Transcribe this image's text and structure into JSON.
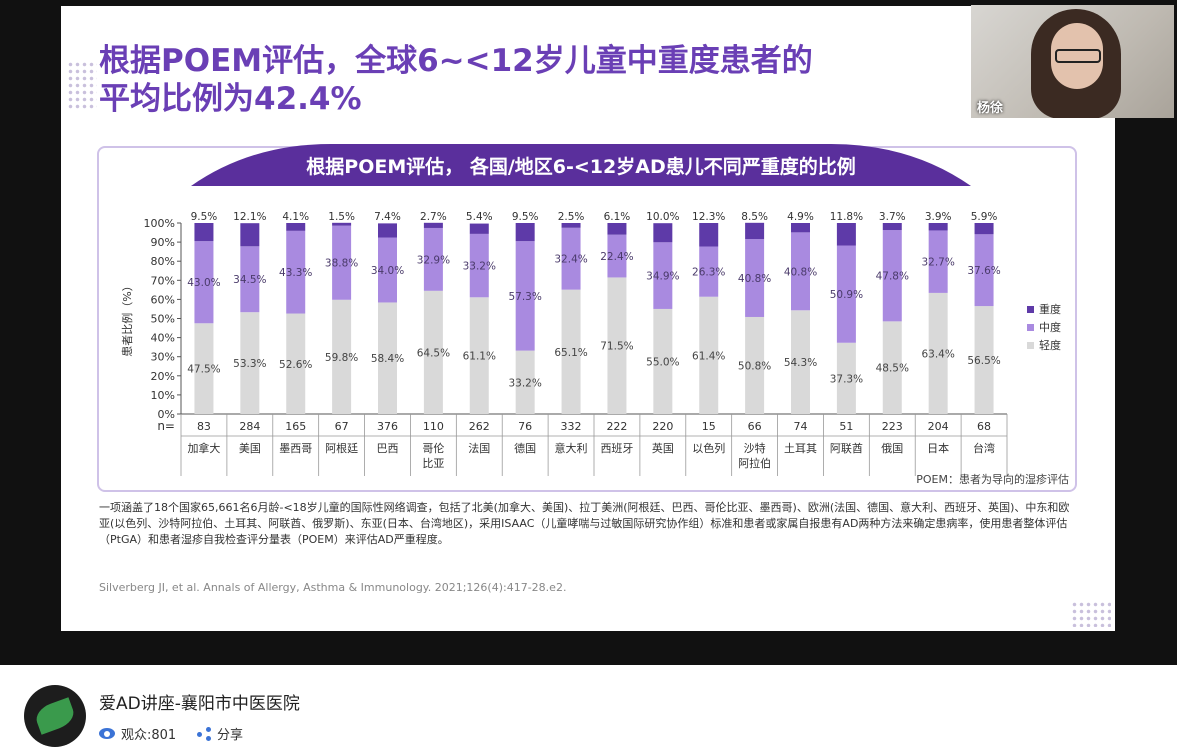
{
  "slide": {
    "title_line1": "根据POEM评估，全球6~<12岁儿童中重度患者的",
    "title_line2": "平均比例为42.4%",
    "banner": "根据POEM评估， 各国/地区6-<12岁AD患儿不同严重度的比例",
    "footnote": "POEM：患者为导向的湿疹评估",
    "note": "一项涵盖了18个国家65,661名6月龄-<18岁儿童的国际性网络调查，包括了北美(加拿大、美国)、拉丁美洲(阿根廷、巴西、哥伦比亚、墨西哥)、欧洲(法国、德国、意大利、西班牙、英国)、中东和欧亚(以色列、沙特阿拉伯、土耳其、阿联酋、俄罗斯)、东亚(日本、台湾地区)，采用ISAAC（儿童哮喘与过敏国际研究协作组）标准和患者或家属自报患有AD两种方法来确定患病率，使用患者整体评估（PtGA）和患者湿疹自我检查评分量表（POEM）来评估AD严重程度。",
    "reference": "Silverberg JI, et al. Annals of Allergy, Asthma & Immunology. 2021;126(4):417-28.e2."
  },
  "chart_data": {
    "type": "bar",
    "stacked": true,
    "ylabel": "患者比例（%）",
    "ylim": [
      0,
      100
    ],
    "yticks": [
      "0%",
      "10%",
      "20%",
      "30%",
      "40%",
      "50%",
      "60%",
      "70%",
      "80%",
      "90%",
      "100%"
    ],
    "n_label": "n=",
    "categories": [
      [
        "加拿大"
      ],
      [
        "美国"
      ],
      [
        "墨西哥"
      ],
      [
        "阿根廷"
      ],
      [
        "巴西"
      ],
      [
        "哥伦",
        "比亚"
      ],
      [
        "法国"
      ],
      [
        "德国"
      ],
      [
        "意大利"
      ],
      [
        "西班牙"
      ],
      [
        "英国"
      ],
      [
        "以色列"
      ],
      [
        "沙特",
        "阿拉伯"
      ],
      [
        "土耳其"
      ],
      [
        "阿联酋"
      ],
      [
        "俄国"
      ],
      [
        "日本"
      ],
      [
        "台湾"
      ]
    ],
    "n": [
      "83",
      "284",
      "165",
      "67",
      "376",
      "110",
      "262",
      "76",
      "332",
      "222",
      "220",
      "15",
      "66",
      "74",
      "51",
      "223",
      "204",
      "68"
    ],
    "series": [
      {
        "name": "轻度",
        "color": "#d9d9d9",
        "values": [
          47.5,
          53.3,
          52.6,
          59.8,
          58.4,
          64.5,
          61.1,
          33.2,
          65.1,
          71.5,
          55.0,
          61.4,
          50.8,
          54.3,
          37.3,
          48.5,
          63.4,
          56.5
        ],
        "labels": [
          "47.5%",
          "53.3%",
          "52.6%",
          "59.8%",
          "58.4%",
          "64.5%",
          "61.1%",
          "33.2%",
          "65.1%",
          "71.5%",
          "55.0%",
          "61.4%",
          "50.8%",
          "54.3%",
          "37.3%",
          "48.5%",
          "63.4%",
          "56.5%"
        ]
      },
      {
        "name": "中度",
        "color": "#a98ae0",
        "values": [
          43.0,
          34.5,
          43.3,
          38.8,
          34.0,
          32.9,
          33.2,
          57.3,
          32.4,
          22.4,
          34.9,
          26.3,
          40.8,
          40.8,
          50.9,
          47.8,
          32.7,
          37.6
        ],
        "labels": [
          "43.0%",
          "34.5%",
          "43.3%",
          "38.8%",
          "34.0%",
          "32.9%",
          "33.2%",
          "57.3%",
          "32.4%",
          "22.4%",
          "34.9%",
          "26.3%",
          "40.8%",
          "40.8%",
          "50.9%",
          "47.8%",
          "32.7%",
          "37.6%"
        ]
      },
      {
        "name": "重度",
        "color": "#5e3aa8",
        "values": [
          9.5,
          12.1,
          4.1,
          1.5,
          7.4,
          2.7,
          5.4,
          9.5,
          2.5,
          6.1,
          10.0,
          12.3,
          8.5,
          4.9,
          11.8,
          3.7,
          3.9,
          5.9
        ],
        "labels": [
          "9.5%",
          "12.1%",
          "4.1%",
          "1.5%",
          "7.4%",
          "2.7%",
          "5.4%",
          "9.5%",
          "2.5%",
          "6.1%",
          "10.0%",
          "12.3%",
          "8.5%",
          "4.9%",
          "11.8%",
          "3.7%",
          "3.9%",
          "5.9%"
        ]
      }
    ],
    "legend": [
      "重度",
      "中度",
      "轻度"
    ],
    "legend_position": "right"
  },
  "camera": {
    "name": "杨徐"
  },
  "channel": {
    "name": "爱AD讲座-襄阳市中医医院",
    "viewers": "观众:801",
    "share": "分享",
    "eye_icon": "eye-icon",
    "share_icon": "share-icon"
  }
}
